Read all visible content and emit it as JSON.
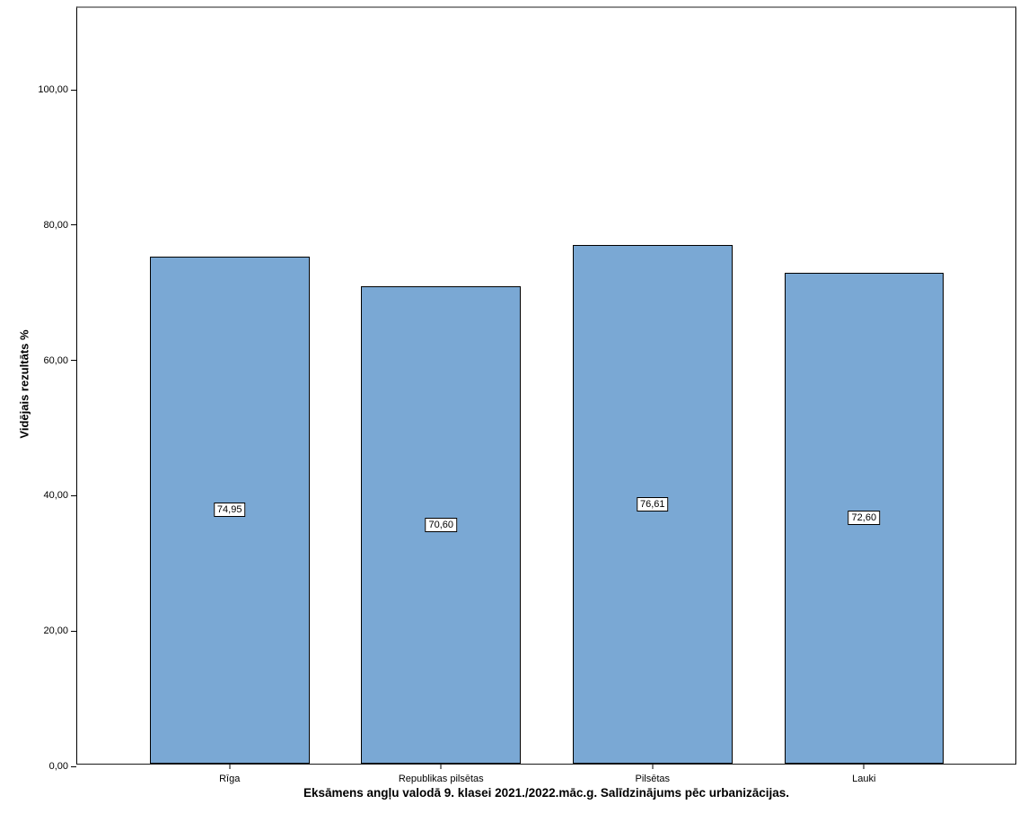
{
  "chart_data": {
    "type": "bar",
    "title": "",
    "caption": "Eksāmens angļu valodā 9. klasei 2021./2022.māc.g. Salīdzinājums pēc urbanizācijas.",
    "xlabel": "",
    "ylabel": "Vidējais rezultāts %",
    "categories": [
      "Rīga",
      "Republikas pilsētas",
      "Pilsētas",
      "Lauki"
    ],
    "values": [
      74.95,
      70.6,
      76.61,
      72.6
    ],
    "value_labels": [
      "74,95",
      "70,60",
      "76,61",
      "72,60"
    ],
    "yticks": [
      0,
      20,
      40,
      60,
      80,
      100
    ],
    "ytick_labels": [
      "0,00",
      "20,00",
      "40,00",
      "60,00",
      "80,00",
      "100,00"
    ],
    "ylim": [
      0,
      112
    ],
    "grid": false,
    "legend": "none",
    "bar_color": "#7AA8D4",
    "bar_border_color": "#000000"
  }
}
